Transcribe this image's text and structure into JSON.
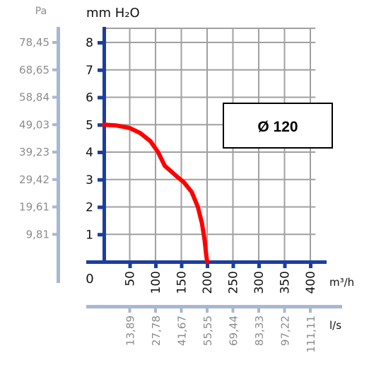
{
  "chart_data": {
    "type": "line",
    "x_unit_primary": "m³/h",
    "x_unit_secondary": "l/s",
    "y_unit_primary": "mm H₂O",
    "y_unit_secondary": "Pa",
    "x_origin_label": "0",
    "x_ticks_primary": [
      "50",
      "100",
      "150",
      "200",
      "250",
      "300",
      "350",
      "400"
    ],
    "x_ticks_primary_values": [
      50,
      100,
      150,
      200,
      250,
      300,
      350,
      400
    ],
    "x_ticks_secondary": [
      "13,89",
      "27,78",
      "41,67",
      "55,55",
      "69,44",
      "83,33",
      "97,22",
      "111,11"
    ],
    "y_ticks_primary": [
      "1",
      "2",
      "3",
      "4",
      "5",
      "6",
      "7",
      "8"
    ],
    "y_ticks_primary_values": [
      1,
      2,
      3,
      4,
      5,
      6,
      7,
      8
    ],
    "y_ticks_secondary": [
      "9,81",
      "19,61",
      "29,42",
      "39,23",
      "49,03",
      "58,84",
      "68,65",
      "78,45"
    ],
    "xlim": [
      0,
      410
    ],
    "ylim": [
      0,
      8.4
    ],
    "grid": true,
    "annotation": "Ø 120",
    "series": [
      {
        "color": "#ff0000",
        "x": [
          0,
          25,
          50,
          70,
          90,
          105,
          118,
          130,
          142,
          155,
          170,
          182,
          190,
          195,
          198,
          200
        ],
        "y": [
          5.0,
          4.97,
          4.88,
          4.7,
          4.4,
          4.0,
          3.5,
          3.3,
          3.1,
          2.9,
          2.55,
          2.0,
          1.4,
          0.8,
          0.3,
          0
        ]
      }
    ],
    "colors": {
      "axis_primary": "#1a3f9e",
      "axis_secondary": "#a8b8d2",
      "grid": "#a0a0a0",
      "secondary_text": "#8c8c8c",
      "curve": "#ff0000"
    }
  }
}
